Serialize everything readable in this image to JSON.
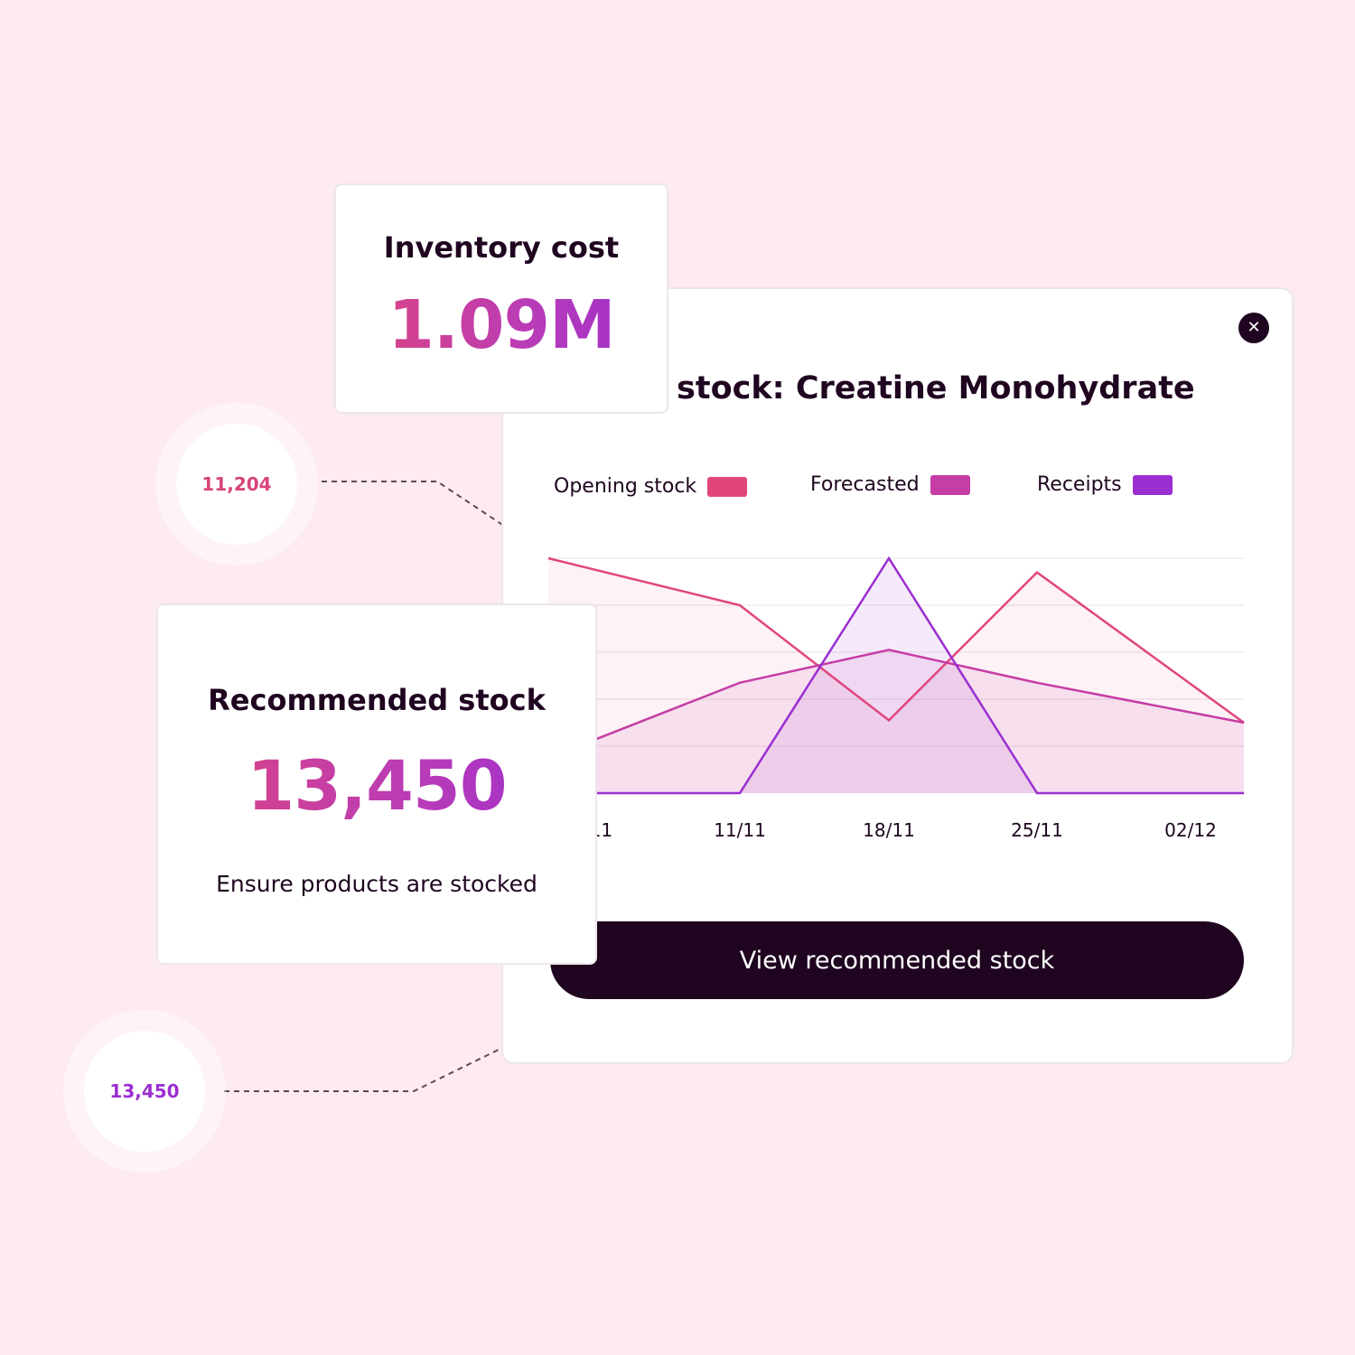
{
  "panel": {
    "title": "stock: Creatine Monohydrate",
    "close_icon": "close-icon",
    "cta_label": "View recommended stock"
  },
  "legend": [
    {
      "label": "Opening stock",
      "color": "#e0457c"
    },
    {
      "label": "Forecasted",
      "color": "#c53da5"
    },
    {
      "label": "Receipts",
      "color": "#9b2ed0"
    }
  ],
  "inventory_card": {
    "label": "Inventory cost",
    "value": "1.09M"
  },
  "recommended_card": {
    "label": "Recommended stock",
    "value": "13,450",
    "subtitle": "Ensure products are stocked"
  },
  "bubbles": {
    "top_value": "11,204",
    "bottom_value": "13,450"
  },
  "chart_data": {
    "type": "area",
    "x_ticks": [
      "/11",
      "11/11",
      "18/11",
      "25/11",
      "02/12"
    ],
    "series": [
      {
        "name": "Opening stock",
        "color": "#e0457c",
        "points": [
          [
            0,
            100
          ],
          [
            1,
            80
          ],
          [
            2,
            31
          ],
          [
            3,
            94
          ],
          [
            4,
            30
          ]
        ]
      },
      {
        "name": "Forecasted",
        "color": "#c53da5",
        "points": [
          [
            0,
            15
          ],
          [
            1,
            47
          ],
          [
            2,
            61
          ],
          [
            3,
            47
          ],
          [
            4,
            30
          ]
        ]
      },
      {
        "name": "Receipts",
        "color": "#9b2ed0",
        "points": [
          [
            0,
            0
          ],
          [
            1,
            0
          ],
          [
            2,
            100
          ],
          [
            3,
            0
          ],
          [
            4,
            0
          ]
        ]
      }
    ],
    "ylim": [
      0,
      100
    ],
    "grid": true
  }
}
